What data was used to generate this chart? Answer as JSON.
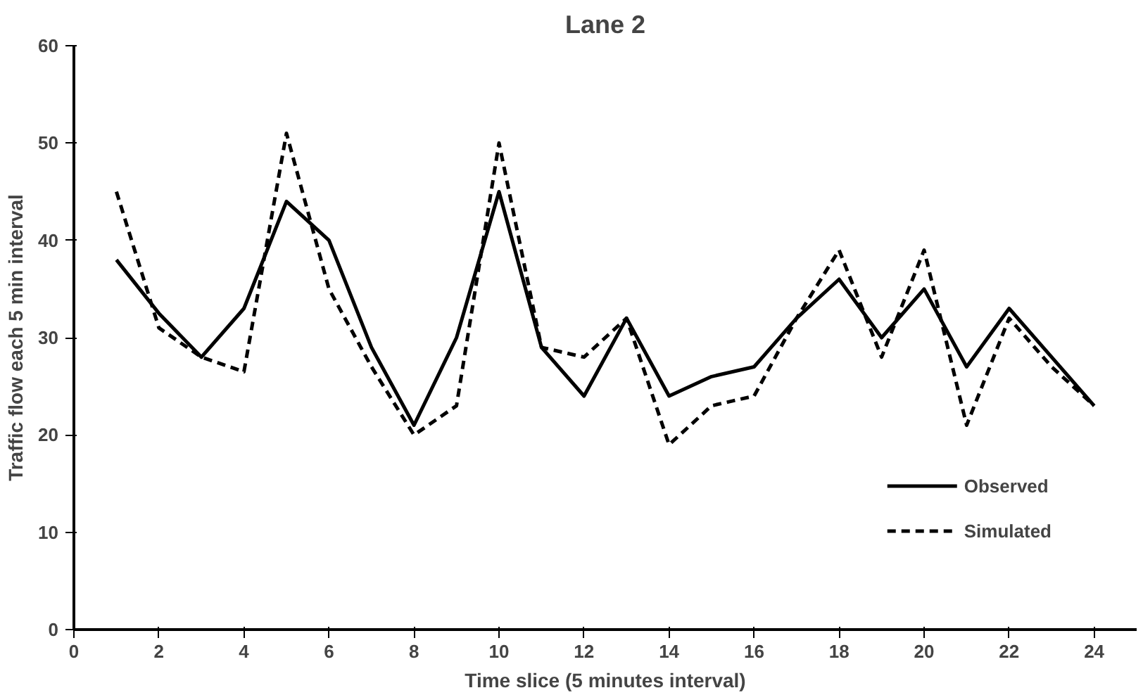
{
  "chart_data": {
    "type": "line",
    "title": "Lane 2",
    "xlabel": "Time slice (5 minutes interval)",
    "ylabel": "Traffic flow each 5 min interval",
    "x": [
      1,
      2,
      3,
      4,
      5,
      6,
      7,
      8,
      9,
      10,
      11,
      12,
      13,
      14,
      15,
      16,
      17,
      18,
      19,
      20,
      21,
      22,
      23,
      24
    ],
    "series": [
      {
        "name": "Observed",
        "color": "#000000",
        "line_style": "solid",
        "values": [
          38,
          32.5,
          28,
          33,
          44,
          40,
          29,
          21,
          30,
          45,
          29,
          24,
          32,
          24,
          26,
          27,
          32,
          36,
          30,
          35,
          27,
          33,
          28,
          23
        ]
      },
      {
        "name": "Simulated",
        "color": "#000000",
        "line_style": "dashed",
        "values": [
          45,
          31,
          28,
          26.5,
          51,
          35,
          27,
          20,
          23,
          50,
          29,
          28,
          32,
          19,
          23,
          24,
          32,
          39,
          28,
          39,
          21,
          32,
          27,
          23
        ]
      }
    ],
    "xlim": [
      0,
      25
    ],
    "xticks": [
      0,
      2,
      4,
      6,
      8,
      10,
      12,
      14,
      16,
      18,
      20,
      22,
      24
    ],
    "ylim": [
      0,
      60
    ],
    "yticks": [
      0,
      10,
      20,
      30,
      40,
      50,
      60
    ],
    "grid": false,
    "legend": "bottom right",
    "marker": "none"
  }
}
